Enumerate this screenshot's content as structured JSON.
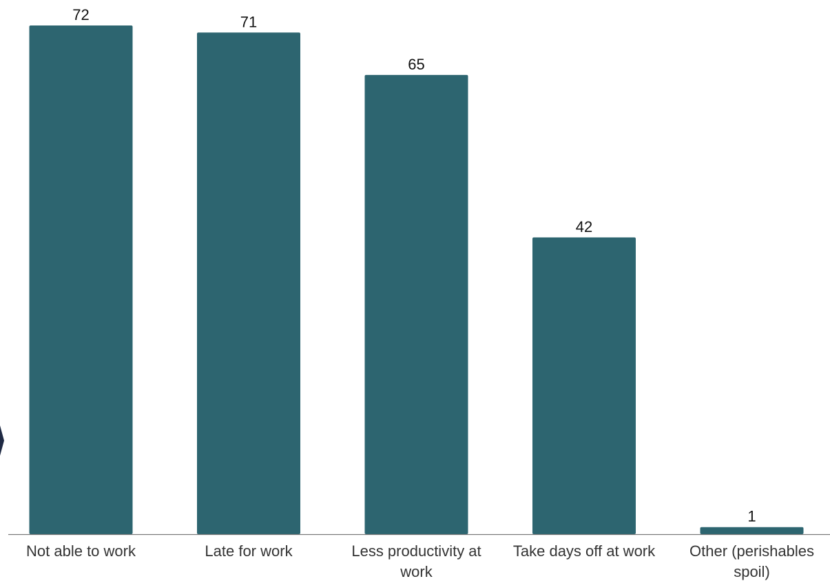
{
  "chart_data": {
    "type": "bar",
    "title": "",
    "xlabel": "",
    "ylabel": "",
    "categories": [
      [
        "Not able to work"
      ],
      [
        "Late for work"
      ],
      [
        "Less productivity at",
        "work"
      ],
      [
        "Take days off at work"
      ],
      [
        "Other (perishables",
        "spoil)"
      ]
    ],
    "values": [
      72,
      71,
      65,
      42,
      1
    ],
    "value_labels": [
      "72",
      "71",
      "65",
      "42",
      "1"
    ],
    "ylim": [
      0,
      72
    ],
    "grid": false,
    "legend": "none",
    "colors": {
      "bar": "#2d6570",
      "axis": "#7a7a7a",
      "edge_marker": "#1f2a44"
    }
  }
}
